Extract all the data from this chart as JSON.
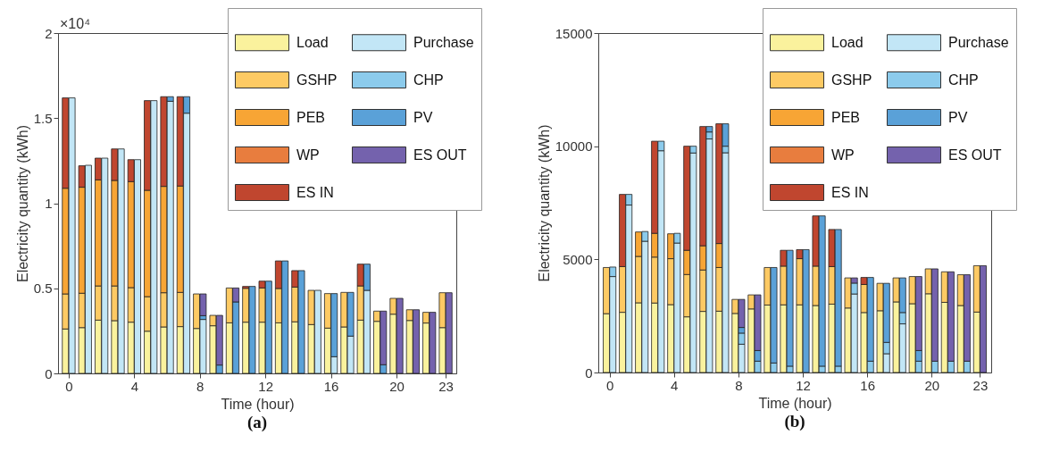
{
  "chart_data": [
    {
      "type": "bar",
      "title": "(a)",
      "xlabel": "Time (hour)",
      "ylabel": "Electricity quantity (kWh)",
      "stacked": true,
      "legend": "top right",
      "annotations": [
        "×10⁴"
      ],
      "x": [
        -0.2,
        0.2,
        0.8,
        1.2,
        1.8,
        2.2,
        2.8,
        3.2,
        3.8,
        4.2,
        4.8,
        5.2,
        5.8,
        6.2,
        6.8,
        7.2,
        7.8,
        8.2,
        8.8,
        9.2,
        9.8,
        10.2,
        10.8,
        11.2,
        11.8,
        12.2,
        12.8,
        13.2,
        13.8,
        14.2,
        14.8,
        15.2,
        15.8,
        16.2,
        16.8,
        17.2,
        17.8,
        18.2,
        18.8,
        19.2,
        19.8,
        20.2,
        20.8,
        21.2,
        21.8,
        22.2,
        22.8,
        23.2
      ],
      "xlim": [
        -0.65,
        23.65
      ],
      "xticks": [
        0,
        4,
        8,
        12,
        16,
        20,
        23
      ],
      "ylim": [
        0,
        2
      ],
      "yticks": [
        0,
        0.5,
        1,
        1.5,
        2
      ],
      "series": [
        {
          "name": "Load",
          "color": "#faf29d",
          "values": [
            0.261,
            null,
            0.269,
            null,
            0.313,
            null,
            0.31,
            null,
            0.301,
            null,
            0.248,
            null,
            0.273,
            null,
            0.275,
            null,
            0.264,
            null,
            0.28,
            null,
            0.297,
            null,
            0.301,
            null,
            0.301,
            null,
            0.297,
            null,
            0.303,
            null,
            0.287,
            null,
            0.266,
            null,
            0.273,
            null,
            0.313,
            null,
            0.306,
            null,
            0.348,
            null,
            0.311,
            null,
            0.296,
            null,
            0.269,
            null
          ]
        },
        {
          "name": "GSHP",
          "color": "#fdca64",
          "values": [
            0.206,
            null,
            0.202,
            null,
            0.201,
            null,
            0.204,
            null,
            0.203,
            null,
            0.203,
            null,
            0.201,
            null,
            0.201,
            null,
            0.203,
            null,
            0.061,
            null,
            0.205,
            null,
            0.199,
            null,
            0.201,
            null,
            0.202,
            null,
            0.204,
            null,
            0.201,
            null,
            0.203,
            null,
            0.203,
            null,
            0.201,
            null,
            0.06,
            null,
            0.093,
            null,
            0.063,
            null,
            0.063,
            null,
            0.205,
            null
          ]
        },
        {
          "name": "PEB",
          "color": "#f7a535",
          "values": [
            0.621,
            null,
            0.623,
            null,
            0.623,
            null,
            0.62,
            null,
            0.623,
            null,
            0.625,
            null,
            0.625,
            null,
            0.625,
            null,
            null,
            null,
            null,
            null,
            null,
            null,
            null,
            null,
            null,
            null,
            null,
            null,
            null,
            null,
            null,
            null,
            null,
            null,
            null,
            null,
            null,
            null,
            null,
            null,
            null,
            null,
            null,
            null,
            null,
            null,
            null,
            null
          ]
        },
        {
          "name": "WP",
          "color": "#e87d3e",
          "values": [
            null,
            null,
            null,
            null,
            null,
            null,
            null,
            null,
            null,
            null,
            null,
            null,
            null,
            null,
            null,
            null,
            null,
            null,
            null,
            null,
            null,
            null,
            null,
            null,
            null,
            null,
            null,
            null,
            null,
            null,
            null,
            null,
            null,
            null,
            null,
            null,
            null,
            null,
            null,
            null,
            null,
            null,
            null,
            null,
            null,
            null,
            null,
            null
          ]
        },
        {
          "name": "ES IN",
          "color": "#c0462f",
          "values": [
            0.531,
            null,
            0.126,
            null,
            0.128,
            null,
            0.185,
            null,
            0.129,
            null,
            0.527,
            null,
            0.527,
            null,
            0.525,
            null,
            null,
            null,
            null,
            null,
            null,
            null,
            0.011,
            null,
            0.04,
            null,
            0.162,
            null,
            0.097,
            null,
            null,
            null,
            null,
            null,
            null,
            null,
            0.128,
            null,
            null,
            null,
            null,
            null,
            null,
            null,
            null,
            null,
            null,
            null
          ]
        },
        {
          "name": "Purchase",
          "color": "#c2e6f6",
          "values": [
            null,
            1.619,
            null,
            1.223,
            null,
            1.265,
            null,
            1.319,
            null,
            1.256,
            null,
            1.603,
            null,
            1.599,
            null,
            1.529,
            null,
            0.317,
            null,
            null,
            null,
            null,
            null,
            null,
            null,
            null,
            null,
            null,
            null,
            null,
            null,
            0.488,
            null,
            0.098,
            null,
            0.219,
            null,
            0.488,
            null,
            null,
            null,
            null,
            null,
            null,
            null,
            null,
            null,
            null
          ]
        },
        {
          "name": "CHP",
          "color": "#8ccbec",
          "values": [
            null,
            null,
            null,
            null,
            null,
            null,
            null,
            null,
            null,
            null,
            null,
            null,
            null,
            null,
            null,
            null,
            null,
            null,
            null,
            null,
            null,
            null,
            null,
            null,
            null,
            null,
            null,
            null,
            null,
            null,
            null,
            null,
            null,
            null,
            null,
            null,
            null,
            null,
            null,
            null,
            null,
            null,
            null,
            null,
            null,
            null,
            null,
            null
          ]
        },
        {
          "name": "PV",
          "color": "#5aa1d8",
          "values": [
            null,
            null,
            null,
            null,
            null,
            null,
            null,
            null,
            null,
            null,
            null,
            null,
            null,
            0.027,
            null,
            0.097,
            null,
            0.022,
            null,
            0.049,
            null,
            0.42,
            null,
            0.511,
            null,
            0.542,
            null,
            0.661,
            null,
            0.604,
            null,
            null,
            null,
            0.371,
            null,
            0.257,
            null,
            0.154,
            null,
            0.051,
            null,
            null,
            null,
            null,
            null,
            null,
            null,
            null
          ]
        },
        {
          "name": "ES OUT",
          "color": "#7462ad",
          "values": [
            null,
            null,
            null,
            null,
            null,
            null,
            null,
            null,
            null,
            null,
            null,
            null,
            null,
            null,
            null,
            null,
            null,
            0.128,
            null,
            0.292,
            null,
            0.082,
            null,
            null,
            null,
            null,
            null,
            null,
            null,
            null,
            null,
            null,
            null,
            null,
            null,
            null,
            null,
            null,
            null,
            0.315,
            null,
            0.441,
            null,
            0.374,
            null,
            0.359,
            null,
            0.474
          ]
        }
      ]
    },
    {
      "type": "bar",
      "title": "(b)",
      "xlabel": "Time (hour)",
      "ylabel": "Electricity quantity (kWh)",
      "stacked": true,
      "legend": "top right",
      "x": [
        -0.2,
        0.2,
        0.8,
        1.2,
        1.8,
        2.2,
        2.8,
        3.2,
        3.8,
        4.2,
        4.8,
        5.2,
        5.8,
        6.2,
        6.8,
        7.2,
        7.8,
        8.2,
        8.8,
        9.2,
        9.8,
        10.2,
        10.8,
        11.2,
        11.8,
        12.2,
        12.8,
        13.2,
        13.8,
        14.2,
        14.8,
        15.2,
        15.8,
        16.2,
        16.8,
        17.2,
        17.8,
        18.2,
        18.8,
        19.2,
        19.8,
        20.2,
        20.8,
        21.2,
        21.8,
        22.2,
        22.8,
        23.2
      ],
      "xlim": [
        -0.7,
        23.7
      ],
      "xticks": [
        0,
        4,
        8,
        12,
        16,
        20,
        23
      ],
      "ylim": [
        0,
        15000
      ],
      "yticks": [
        0,
        5000,
        10000,
        15000
      ],
      "series": [
        {
          "name": "Load",
          "color": "#faf29d",
          "values": [
            2600,
            null,
            2660,
            null,
            3080,
            null,
            3070,
            null,
            3000,
            null,
            2460,
            null,
            2700,
            null,
            2710,
            null,
            2610,
            null,
            2810,
            null,
            2980,
            null,
            2990,
            null,
            2990,
            null,
            2960,
            null,
            3020,
            null,
            2850,
            null,
            2650,
            null,
            2730,
            null,
            3120,
            null,
            3040,
            null,
            3480,
            null,
            3100,
            null,
            2960,
            null,
            2670,
            null
          ]
        },
        {
          "name": "GSHP",
          "color": "#fdca64",
          "values": [
            2040,
            null,
            2020,
            null,
            2050,
            null,
            2030,
            null,
            2030,
            null,
            1870,
            null,
            1830,
            null,
            1930,
            null,
            620,
            null,
            620,
            null,
            1660,
            null,
            1710,
            null,
            2040,
            null,
            1740,
            null,
            1660,
            null,
            1330,
            null,
            1240,
            null,
            1210,
            null,
            1060,
            null,
            1200,
            null,
            1100,
            null,
            1350,
            null,
            1360,
            null,
            2050,
            null
          ]
        },
        {
          "name": "PEB",
          "color": "#f7a535",
          "values": [
            null,
            null,
            null,
            null,
            1080,
            null,
            1050,
            null,
            1100,
            null,
            1070,
            null,
            1070,
            null,
            1060,
            null,
            null,
            null,
            null,
            null,
            null,
            null,
            null,
            null,
            null,
            null,
            null,
            null,
            null,
            null,
            null,
            null,
            null,
            null,
            null,
            null,
            null,
            null,
            null,
            null,
            null,
            null,
            null,
            null,
            null,
            null,
            null,
            null
          ]
        },
        {
          "name": "WP",
          "color": "#e87d3e",
          "values": [
            null,
            null,
            null,
            null,
            null,
            null,
            null,
            null,
            null,
            null,
            null,
            null,
            null,
            null,
            null,
            null,
            null,
            null,
            null,
            null,
            null,
            null,
            null,
            null,
            null,
            null,
            null,
            null,
            null,
            null,
            null,
            null,
            null,
            null,
            null,
            null,
            null,
            null,
            null,
            null,
            null,
            null,
            null,
            null,
            null,
            null,
            null,
            null
          ]
        },
        {
          "name": "ES IN",
          "color": "#c0462f",
          "values": [
            null,
            null,
            3190,
            null,
            null,
            null,
            4070,
            null,
            null,
            null,
            4600,
            null,
            5270,
            null,
            5290,
            null,
            null,
            null,
            null,
            null,
            null,
            null,
            700,
            null,
            400,
            null,
            2220,
            null,
            1640,
            null,
            null,
            null,
            310,
            null,
            null,
            null,
            null,
            null,
            null,
            null,
            null,
            null,
            null,
            null,
            null,
            null,
            null,
            null
          ]
        },
        {
          "name": "Purchase",
          "color": "#c2e6f6",
          "values": [
            null,
            4240,
            null,
            7400,
            null,
            5800,
            null,
            9800,
            null,
            5720,
            null,
            9700,
            null,
            10320,
            null,
            9710,
            null,
            1250,
            null,
            null,
            null,
            null,
            null,
            null,
            null,
            null,
            null,
            null,
            null,
            null,
            null,
            3470,
            null,
            null,
            null,
            830,
            null,
            2150,
            null,
            null,
            null,
            null,
            null,
            null,
            null,
            null,
            null,
            null
          ]
        },
        {
          "name": "CHP",
          "color": "#8ccbec",
          "values": [
            null,
            420,
            null,
            470,
            null,
            430,
            null,
            420,
            null,
            430,
            null,
            300,
            null,
            310,
            null,
            290,
            null,
            490,
            null,
            500,
            null,
            420,
            null,
            280,
            null,
            null,
            null,
            280,
            null,
            280,
            null,
            480,
            null,
            500,
            null,
            500,
            null,
            500,
            null,
            500,
            null,
            500,
            null,
            500,
            null,
            500,
            null,
            null
          ]
        },
        {
          "name": "PV",
          "color": "#5aa1d8",
          "values": [
            null,
            null,
            null,
            null,
            null,
            null,
            null,
            null,
            null,
            null,
            null,
            null,
            null,
            240,
            null,
            990,
            null,
            250,
            null,
            470,
            null,
            4220,
            null,
            5120,
            null,
            5430,
            null,
            6640,
            null,
            6040,
            null,
            null,
            null,
            3700,
            null,
            2610,
            null,
            1530,
            null,
            470,
            null,
            null,
            null,
            null,
            null,
            null,
            null,
            null
          ]
        },
        {
          "name": "ES OUT",
          "color": "#7462ad",
          "values": [
            null,
            null,
            null,
            null,
            null,
            null,
            null,
            null,
            null,
            null,
            null,
            null,
            null,
            null,
            null,
            null,
            null,
            1240,
            null,
            2460,
            null,
            null,
            null,
            null,
            null,
            null,
            null,
            null,
            null,
            null,
            null,
            230,
            null,
            null,
            null,
            null,
            null,
            null,
            null,
            3270,
            null,
            4080,
            null,
            3950,
            null,
            3820,
            null,
            4720
          ]
        }
      ]
    }
  ]
}
